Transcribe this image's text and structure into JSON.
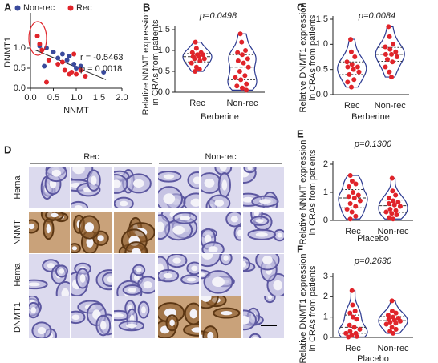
{
  "chart_data": [
    {
      "type": "scatter",
      "panel_label": "A",
      "xlabel": "NNMT",
      "ylabel": [
        "DNMT1"
      ],
      "annotations": [
        "r = -0.5463",
        "p = 0.0018"
      ],
      "xlim": [
        0,
        2
      ],
      "ylim": [
        0,
        1.8
      ],
      "xticks": [
        {
          "value": 0,
          "label": "0.0"
        },
        0.5,
        {
          "value": 1,
          "label": "1.0"
        },
        1.5,
        {
          "value": 2,
          "label": "2.0"
        }
      ],
      "yticks": [
        {
          "value": 0,
          "label": "0.0"
        },
        0.5,
        {
          "value": 1,
          "label": "1.0"
        }
      ],
      "series": [
        {
          "name": "Non-rec",
          "color": "#3a4a9c",
          "x": [
            0.2,
            0.35,
            0.5,
            0.6,
            0.7,
            0.85,
            0.95,
            1.0,
            1.1,
            1.6,
            0.3,
            0.8
          ],
          "values": [
            1.05,
            1.0,
            0.9,
            0.75,
            0.85,
            0.8,
            0.6,
            0.5,
            0.55,
            0.4,
            0.55,
            0.7
          ]
        },
        {
          "name": "Rec",
          "color": "#e0242a",
          "x": [
            0.15,
            0.2,
            0.25,
            0.4,
            0.35,
            0.6,
            0.75,
            0.85,
            0.9,
            1.0,
            1.1,
            1.2,
            0.95,
            0.7
          ],
          "values": [
            1.3,
            1.1,
            0.95,
            0.7,
            0.15,
            0.6,
            0.45,
            0.35,
            0.4,
            0.35,
            0.45,
            0.3,
            0.85,
            0.65
          ]
        }
      ]
    },
    {
      "type": "violin",
      "panel_label": "B",
      "annotation": "p=0.0498",
      "xlabel": "Berberine",
      "ylabel": [
        "Relative NNMT expression",
        "in CRAs from patients"
      ],
      "categories": [
        "Rec",
        "Non-rec"
      ],
      "color": "#e0242a",
      "violin_color": "#2b3990",
      "ylim": [
        0,
        1.5
      ],
      "yticks": [
        {
          "value": 0,
          "label": "0.0"
        },
        0.5,
        {
          "value": 1,
          "label": "1.0"
        },
        1.5
      ],
      "values": [
        [
          1.2,
          1.05,
          0.95,
          0.95,
          0.9,
          0.9,
          0.85,
          0.85,
          0.8,
          0.8,
          0.75,
          0.7,
          0.6,
          0.55,
          0.5
        ],
        [
          1.4,
          1.2,
          1.0,
          0.95,
          0.9,
          0.8,
          0.75,
          0.7,
          0.6,
          0.5,
          0.4,
          0.35,
          0.3,
          0.2,
          0.15,
          0.1,
          0.05
        ]
      ]
    },
    {
      "type": "violin",
      "panel_label": "C",
      "annotation": "p=0.0084",
      "xlabel": "Berberine",
      "ylabel": [
        "Relative DNMT1 expression",
        "in CRAs from patients"
      ],
      "categories": [
        "Rec",
        "Non-rec"
      ],
      "color": "#e0242a",
      "violin_color": "#2b3990",
      "ylim": [
        0,
        1.5
      ],
      "yticks": [
        {
          "value": 0,
          "label": "0.0"
        },
        0.5,
        {
          "value": 1,
          "label": "1.0"
        },
        1.5
      ],
      "values": [
        [
          1.1,
          0.85,
          0.75,
          0.65,
          0.6,
          0.55,
          0.55,
          0.5,
          0.45,
          0.4,
          0.3,
          0.25,
          0.15
        ],
        [
          1.35,
          1.15,
          1.0,
          0.95,
          0.9,
          0.85,
          0.8,
          0.8,
          0.75,
          0.7,
          0.65,
          0.55,
          0.45,
          0.35
        ]
      ]
    },
    {
      "type": "violin",
      "panel_label": "E",
      "annotation": "p=0.1300",
      "xlabel": "Placebo",
      "ylabel": [
        "Relative NNMT expression",
        "in CRAs from patients"
      ],
      "categories": [
        "Rec",
        "Non-rec"
      ],
      "color": "#e0242a",
      "violin_color": "#2b3990",
      "ylim": [
        0,
        2
      ],
      "yticks": [
        0,
        1,
        2
      ],
      "values": [
        [
          1.6,
          1.4,
          1.3,
          1.2,
          1.0,
          0.9,
          0.85,
          0.8,
          0.7,
          0.6,
          0.5,
          0.4,
          0.3,
          0.15,
          0.05
        ],
        [
          1.5,
          1.05,
          0.9,
          0.8,
          0.7,
          0.65,
          0.6,
          0.55,
          0.5,
          0.4,
          0.35,
          0.3,
          0.25,
          0.2,
          0.1,
          0.05
        ]
      ]
    },
    {
      "type": "violin",
      "panel_label": "F",
      "annotation": "p=0.2630",
      "xlabel": "Placebo",
      "ylabel": [
        "Relative DNMT1 expression",
        "in CRAs from patients"
      ],
      "categories": [
        "Rec",
        "Non-rec"
      ],
      "color": "#e0242a",
      "violin_color": "#2b3990",
      "ylim": [
        0,
        3
      ],
      "yticks": [
        0,
        1,
        2,
        3
      ],
      "values": [
        [
          2.3,
          1.6,
          1.3,
          1.2,
          1.0,
          0.9,
          0.6,
          0.5,
          0.4,
          0.3,
          0.2,
          0.2,
          0.1,
          0.05,
          0.02
        ],
        [
          1.8,
          1.3,
          1.2,
          1.1,
          1.0,
          0.95,
          0.9,
          0.85,
          0.8,
          0.75,
          0.7,
          0.65,
          0.5,
          0.4,
          0.3,
          0.2
        ]
      ]
    }
  ],
  "histology": {
    "panel_label": "D",
    "groups": [
      "Rec",
      "Non-rec"
    ],
    "rows": [
      "Hema",
      "NNMT",
      "Hema",
      "DNMT1"
    ]
  }
}
